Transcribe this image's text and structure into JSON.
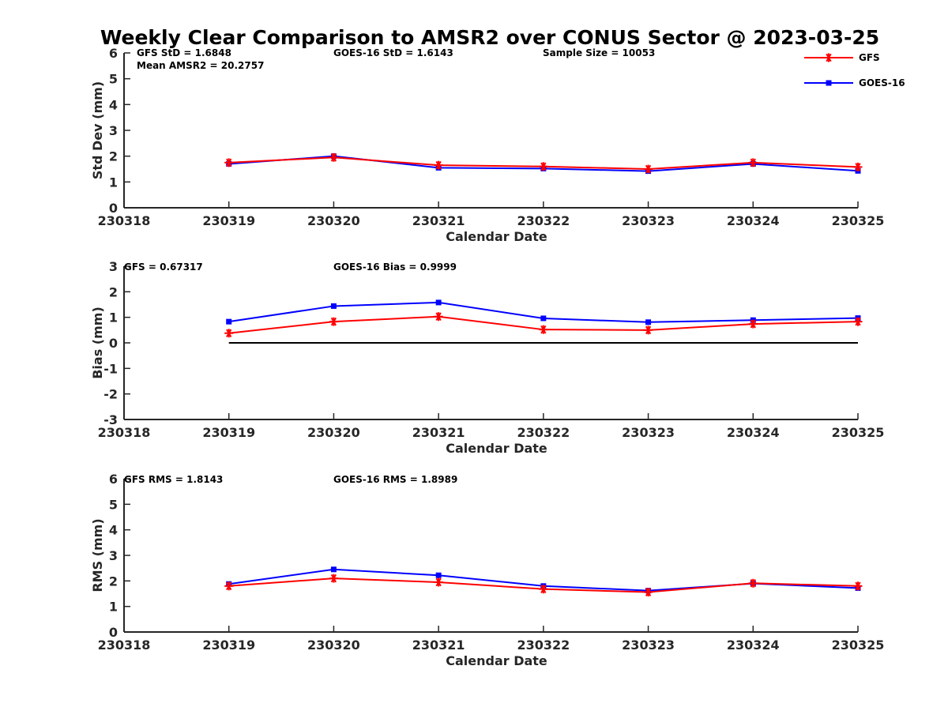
{
  "figure_title": "Weekly Clear Comparison to AMSR2 over CONUS Sector @ 2023-03-25",
  "legend": [
    {
      "name": "GFS",
      "color": "#ff0000",
      "marker": "asterisk"
    },
    {
      "name": "GOES-16",
      "color": "#0000ff",
      "marker": "square"
    }
  ],
  "chart_data": [
    {
      "type": "line",
      "title": "",
      "xlabel": "Calendar Date",
      "ylabel": "Std Dev (mm)",
      "x_ticks": [
        "230318",
        "230319",
        "230320",
        "230321",
        "230322",
        "230323",
        "230324",
        "230325"
      ],
      "y_ticks": [
        "0",
        "1",
        "2",
        "3",
        "4",
        "5",
        "6"
      ],
      "ylim": [
        0,
        6
      ],
      "x": [
        "230319",
        "230320",
        "230321",
        "230322",
        "230323",
        "230324",
        "230325"
      ],
      "series": [
        {
          "name": "GFS",
          "values": [
            1.75,
            1.95,
            1.65,
            1.6,
            1.5,
            1.75,
            1.58
          ]
        },
        {
          "name": "GOES-16",
          "values": [
            1.7,
            2.0,
            1.55,
            1.52,
            1.42,
            1.7,
            1.43
          ]
        }
      ],
      "annotations": [
        "GFS StD = 1.6848",
        "Mean AMSR2 = 20.2757",
        "GOES-16 StD = 1.6143",
        "Sample Size = 10053"
      ],
      "zero_line": false
    },
    {
      "type": "line",
      "title": "",
      "xlabel": "Calendar Date",
      "ylabel": "Bias (mm)",
      "x_ticks": [
        "230318",
        "230319",
        "230320",
        "230321",
        "230322",
        "230323",
        "230324",
        "230325"
      ],
      "y_ticks": [
        "-3",
        "-2",
        "-1",
        "0",
        "1",
        "2",
        "3"
      ],
      "ylim": [
        -3,
        3
      ],
      "x": [
        "230319",
        "230320",
        "230321",
        "230322",
        "230323",
        "230324",
        "230325"
      ],
      "series": [
        {
          "name": "GFS",
          "values": [
            0.38,
            0.83,
            1.03,
            0.52,
            0.5,
            0.74,
            0.83
          ]
        },
        {
          "name": "GOES-16",
          "values": [
            0.83,
            1.44,
            1.58,
            0.96,
            0.81,
            0.89,
            0.97
          ]
        }
      ],
      "annotations": [
        "GFS = 0.67317",
        "GOES-16 Bias  = 0.9999"
      ],
      "zero_line": true
    },
    {
      "type": "line",
      "title": "",
      "xlabel": "Calendar Date",
      "ylabel": "RMS (mm)",
      "x_ticks": [
        "230318",
        "230319",
        "230320",
        "230321",
        "230322",
        "230323",
        "230324",
        "230325"
      ],
      "y_ticks": [
        "0",
        "1",
        "2",
        "3",
        "4",
        "5",
        "6"
      ],
      "ylim": [
        0,
        6
      ],
      "x": [
        "230319",
        "230320",
        "230321",
        "230322",
        "230323",
        "230324",
        "230325"
      ],
      "series": [
        {
          "name": "GFS",
          "values": [
            1.8,
            2.1,
            1.95,
            1.68,
            1.56,
            1.91,
            1.8
          ]
        },
        {
          "name": "GOES-16",
          "values": [
            1.88,
            2.45,
            2.22,
            1.8,
            1.62,
            1.9,
            1.72
          ]
        }
      ],
      "annotations": [
        "GFS RMS = 1.8143",
        "GOES-16 RMS = 1.8989"
      ],
      "zero_line": false
    }
  ]
}
